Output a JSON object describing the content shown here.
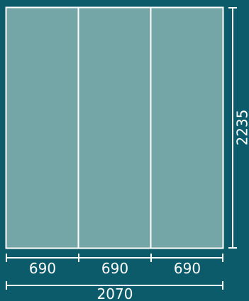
{
  "colors": {
    "background": "#0b5b6b",
    "panel_fill": "#74a5a7",
    "line": "#ffffff"
  },
  "panels": [
    {
      "width_label": "690"
    },
    {
      "width_label": "690"
    },
    {
      "width_label": "690"
    }
  ],
  "dimensions": {
    "total_width": "2070",
    "height": "2235"
  }
}
